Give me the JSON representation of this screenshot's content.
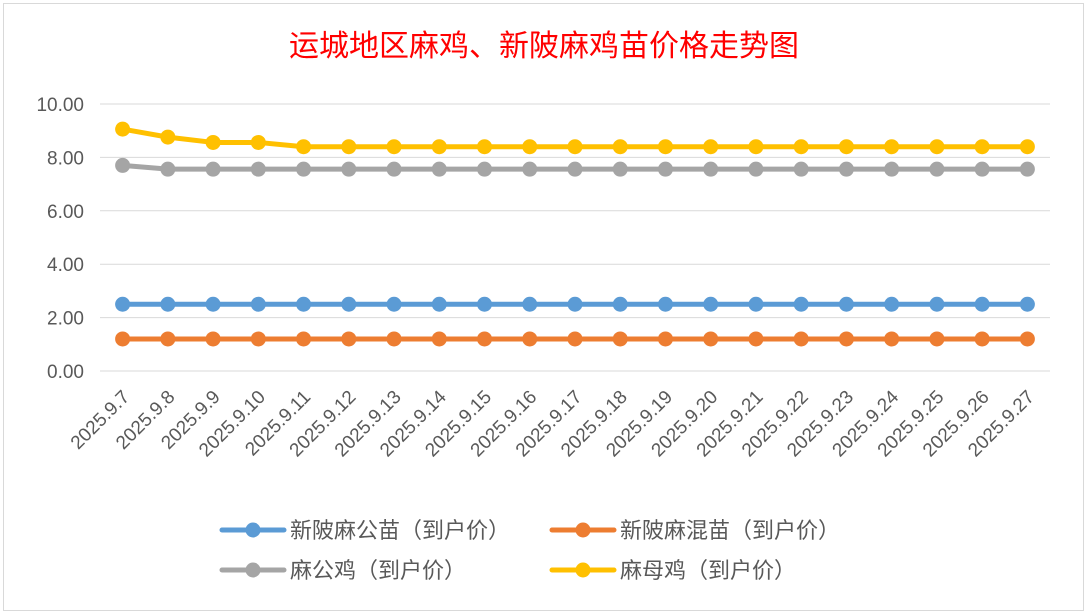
{
  "chart_data": {
    "type": "line",
    "title": "运城地区麻鸡、新陂麻鸡苗价格走势图",
    "title_color": "#ff0000",
    "xlabel": "",
    "ylabel": "",
    "ylim": [
      0,
      10
    ],
    "yticks": [
      "0.00",
      "2.00",
      "4.00",
      "6.00",
      "8.00",
      "10.00"
    ],
    "ytick_values": [
      0,
      2,
      4,
      6,
      8,
      10
    ],
    "grid": true,
    "legend_position": "bottom",
    "categories": [
      "2025.9.7",
      "2025.9.8",
      "2025.9.9",
      "2025.9.10",
      "2025.9.11",
      "2025.9.12",
      "2025.9.13",
      "2025.9.14",
      "2025.9.15",
      "2025.9.16",
      "2025.9.17",
      "2025.9.18",
      "2025.9.19",
      "2025.9.20",
      "2025.9.21",
      "2025.9.22",
      "2025.9.23",
      "2025.9.24",
      "2025.9.25",
      "2025.9.26",
      "2025.9.27"
    ],
    "series": [
      {
        "name": "新陂麻公苗（到户价）",
        "color": "#5b9bd5",
        "values": [
          2.5,
          2.5,
          2.5,
          2.5,
          2.5,
          2.5,
          2.5,
          2.5,
          2.5,
          2.5,
          2.5,
          2.5,
          2.5,
          2.5,
          2.5,
          2.5,
          2.5,
          2.5,
          2.5,
          2.5,
          2.5
        ]
      },
      {
        "name": "新陂麻混苗（到户价）",
        "color": "#ed7d31",
        "values": [
          1.2,
          1.2,
          1.2,
          1.2,
          1.2,
          1.2,
          1.2,
          1.2,
          1.2,
          1.2,
          1.2,
          1.2,
          1.2,
          1.2,
          1.2,
          1.2,
          1.2,
          1.2,
          1.2,
          1.2,
          1.2
        ]
      },
      {
        "name": "麻公鸡（到户价）",
        "color": "#a5a5a5",
        "values": [
          7.7,
          7.56,
          7.56,
          7.56,
          7.56,
          7.56,
          7.56,
          7.56,
          7.56,
          7.56,
          7.56,
          7.56,
          7.56,
          7.56,
          7.56,
          7.56,
          7.56,
          7.56,
          7.56,
          7.56,
          7.56
        ]
      },
      {
        "name": "麻母鸡（到户价）",
        "color": "#ffc000",
        "values": [
          9.06,
          8.76,
          8.56,
          8.56,
          8.4,
          8.4,
          8.4,
          8.4,
          8.4,
          8.4,
          8.4,
          8.4,
          8.4,
          8.4,
          8.4,
          8.4,
          8.4,
          8.4,
          8.4,
          8.4,
          8.4
        ]
      }
    ]
  }
}
